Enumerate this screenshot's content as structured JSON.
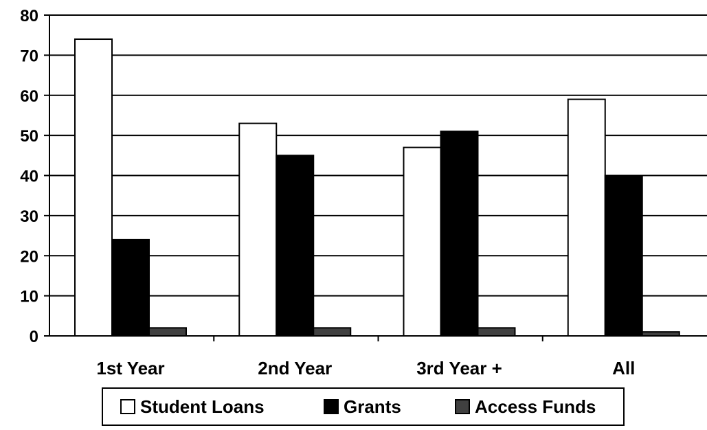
{
  "chart_data": {
    "type": "bar",
    "title": "",
    "xlabel": "",
    "ylabel": "",
    "categories": [
      "1st Year",
      "2nd Year",
      "3rd Year +",
      "All"
    ],
    "series": [
      {
        "name": "Student Loans",
        "color": "#ffffff",
        "values": [
          74,
          53,
          47,
          59
        ]
      },
      {
        "name": "Grants",
        "color": "#000000",
        "values": [
          24,
          45,
          51,
          40
        ]
      },
      {
        "name": "Access Funds",
        "color": "#404040",
        "values": [
          2,
          2,
          2,
          1
        ]
      }
    ],
    "ylim": [
      0,
      80
    ],
    "yticks": [
      0,
      10,
      20,
      30,
      40,
      50,
      60,
      70,
      80
    ],
    "grid": true,
    "legend": "bottom"
  }
}
